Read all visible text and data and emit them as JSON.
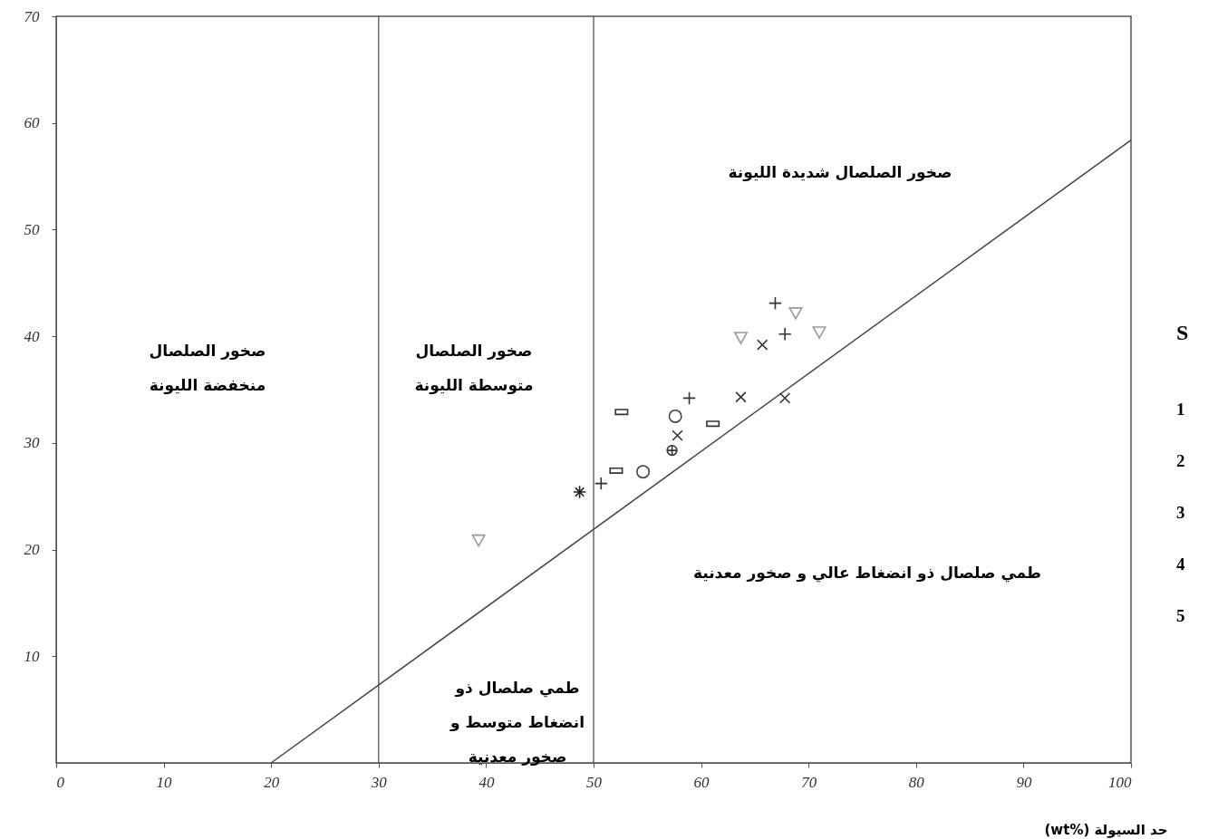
{
  "chart_data": {
    "type": "scatter",
    "xlabel": "(wt%) حد السيولة",
    "xlim": [
      0,
      100
    ],
    "ylim": [
      0,
      70
    ],
    "xticks": [
      0,
      10,
      20,
      30,
      40,
      50,
      60,
      70,
      80,
      90,
      100
    ],
    "yticks": [
      10,
      20,
      30,
      40,
      50,
      60,
      70
    ],
    "grid": false,
    "series": [
      {
        "type": "line",
        "color": "#444444",
        "x": [
          20,
          100
        ],
        "values": [
          0,
          58.4
        ]
      },
      {
        "color": "#333333",
        "marker": "cross",
        "x": [
          50.7,
          58.9,
          66.9,
          67.8
        ],
        "values": [
          26.2,
          34.2,
          43.1,
          40.2
        ]
      },
      {
        "color": "#333333",
        "x": [
          57.8,
          63.7,
          67.8,
          65.7
        ],
        "values": [
          30.7,
          34.3,
          34.2,
          39.2
        ]
      },
      {
        "color": "#999999",
        "marker": "triangle",
        "x": [
          39.3,
          63.7,
          68.8,
          71.0
        ],
        "values": [
          20.9,
          39.9,
          42.2,
          40.4
        ]
      },
      {
        "color": "#444444",
        "marker": "circle",
        "x": [
          54.6,
          57.6
        ],
        "values": [
          27.3,
          32.5
        ]
      },
      {
        "color": "#333333",
        "marker": "square",
        "x": [
          52.1,
          52.6,
          61.1
        ],
        "values": [
          27.4,
          32.9,
          31.8
        ]
      },
      {
        "color": "#222222",
        "x": [
          48.7
        ],
        "values": [
          25.4
        ]
      },
      {
        "color": "#333333",
        "x": [
          57.3
        ],
        "values": [
          29.3
        ]
      }
    ],
    "ref_lines": [
      {
        "axis": "x",
        "value": 30,
        "color": "#555555"
      },
      {
        "axis": "x",
        "value": 50,
        "color": "#555555"
      }
    ],
    "annotations": [
      "صخور الصلصال\nمنخفضة الليونة",
      "صخور الصلصال\nمتوسطة الليونة",
      "صخور الصلصال شديدة الليونة",
      "طمي صلصال ذو انضغاط عالي و صخور معدنية",
      "طمي صلصال ذو\nانضغاط متوسط و\nصخور معدنية",
      "S",
      "1",
      "2",
      "3",
      "4",
      "5"
    ]
  }
}
